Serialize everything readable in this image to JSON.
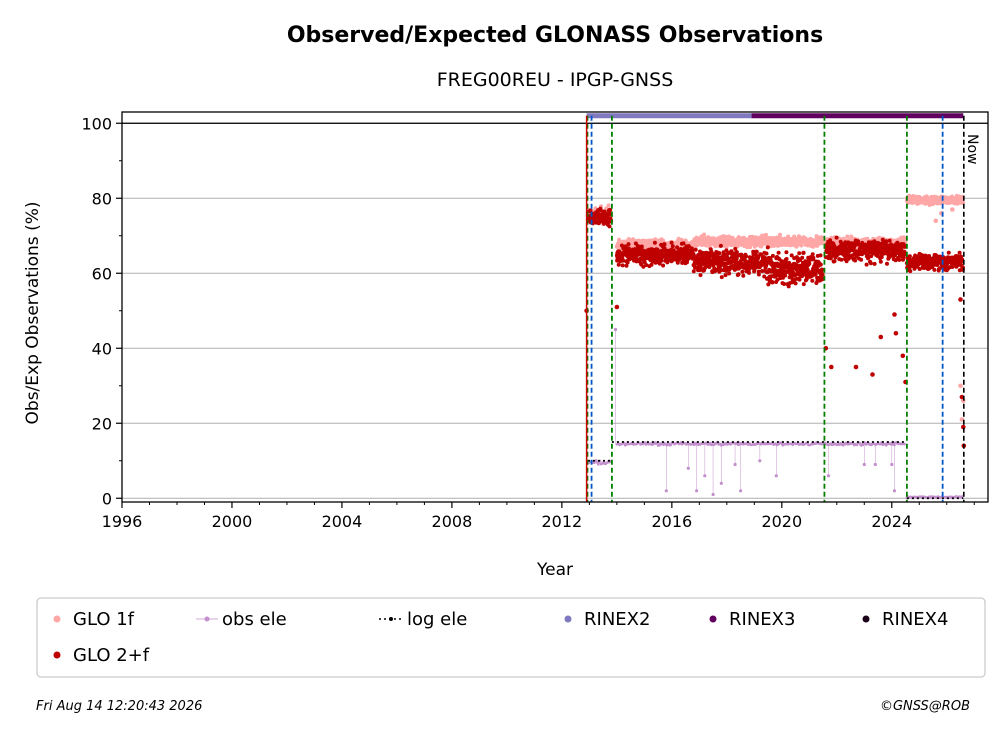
{
  "chart_data": {
    "type": "scatter",
    "title": "Observed/Expected GLONASS Observations",
    "subtitle": "FREG00REU - IPGP-GNSS",
    "xlabel": "Year",
    "ylabel": "Obs/Exp Observations (%)",
    "xlim": [
      1996,
      2027.5
    ],
    "ylim": [
      -1,
      103
    ],
    "xticks": [
      1996,
      2000,
      2004,
      2008,
      2012,
      2016,
      2020,
      2024
    ],
    "yticks": [
      0,
      20,
      40,
      60,
      80,
      100
    ],
    "grid": "horizontal",
    "legend_position": "bottom",
    "now_label": "Now",
    "now_x": 2026.62,
    "green_event_lines": [
      2012.93,
      2013.82,
      2021.55,
      2024.55
    ],
    "blue_event_lines": [
      2013.08,
      2025.85
    ],
    "red_event_lines": [
      2012.9
    ],
    "series": [
      {
        "name": "GLO 1f",
        "color": "#ffa6a6",
        "segments": [
          {
            "x0": 2012.95,
            "x1": 2013.8,
            "y": 75.5,
            "spread": 3
          },
          {
            "x0": 2014.0,
            "x1": 2016.8,
            "y": 67.5,
            "spread": 2
          },
          {
            "x0": 2016.8,
            "x1": 2021.5,
            "y": 68.5,
            "spread": 2
          },
          {
            "x0": 2021.6,
            "x1": 2024.5,
            "y": 68.0,
            "spread": 2
          },
          {
            "x0": 2024.55,
            "x1": 2026.6,
            "y": 79.5,
            "spread": 1.5
          }
        ],
        "outliers": [
          [
            2025.6,
            74
          ],
          [
            2025.8,
            76
          ],
          [
            2026.2,
            77
          ],
          [
            2026.5,
            30
          ],
          [
            2026.55,
            21
          ],
          [
            2026.6,
            26
          ]
        ]
      },
      {
        "name": "GLO 2+f",
        "color": "#bf0000",
        "segments": [
          {
            "x0": 2012.95,
            "x1": 2013.8,
            "y": 75.0,
            "spread": 3
          },
          {
            "x0": 2014.0,
            "x1": 2016.8,
            "y": 65.0,
            "spread": 4
          },
          {
            "x0": 2016.8,
            "x1": 2019.5,
            "y": 63.0,
            "spread": 5
          },
          {
            "x0": 2019.5,
            "x1": 2021.5,
            "y": 61.0,
            "spread": 6
          },
          {
            "x0": 2021.6,
            "x1": 2024.5,
            "y": 66.0,
            "spread": 4
          },
          {
            "x0": 2024.55,
            "x1": 2026.6,
            "y": 63.0,
            "spread": 3
          }
        ],
        "outliers": [
          [
            2012.9,
            50
          ],
          [
            2014.0,
            51
          ],
          [
            2021.6,
            40
          ],
          [
            2021.8,
            35
          ],
          [
            2022.7,
            35
          ],
          [
            2023.3,
            33
          ],
          [
            2023.6,
            43
          ],
          [
            2024.1,
            49
          ],
          [
            2024.15,
            44
          ],
          [
            2024.4,
            38
          ],
          [
            2024.5,
            31
          ],
          [
            2026.5,
            53
          ],
          [
            2026.55,
            27
          ],
          [
            2026.6,
            19
          ],
          [
            2026.62,
            14
          ]
        ]
      },
      {
        "name": "obs ele",
        "color": "#c38fcc",
        "segments": [
          {
            "x0": 2012.95,
            "x1": 2013.8,
            "y": 9.5,
            "spread": 1
          },
          {
            "x0": 2014.0,
            "x1": 2024.5,
            "y": 14.5,
            "spread": 0.5
          },
          {
            "x0": 2024.55,
            "x1": 2026.6,
            "y": 0.3,
            "spread": 0.3
          }
        ],
        "outliers": [
          [
            2015.8,
            2
          ],
          [
            2016.6,
            8
          ],
          [
            2016.9,
            2
          ],
          [
            2017.2,
            6
          ],
          [
            2017.5,
            1
          ],
          [
            2017.8,
            4
          ],
          [
            2018.3,
            9
          ],
          [
            2018.5,
            2
          ],
          [
            2019.2,
            10
          ],
          [
            2019.8,
            6
          ],
          [
            2021.7,
            6
          ],
          [
            2023.0,
            9
          ],
          [
            2023.4,
            9
          ],
          [
            2024.0,
            9
          ],
          [
            2024.1,
            2
          ],
          [
            2013.95,
            45
          ]
        ]
      },
      {
        "name": "log ele",
        "color": "#000000",
        "steps": [
          [
            2012.95,
            2013.8,
            10
          ],
          [
            2013.82,
            2024.55,
            15
          ],
          [
            2024.55,
            2026.6,
            0
          ]
        ]
      },
      {
        "name": "RINEX2",
        "color": "#8079c0",
        "range": [
          2012.9,
          2018.9
        ],
        "y": 102
      },
      {
        "name": "RINEX3",
        "color": "#62005f",
        "range": [
          2018.9,
          2026.6
        ],
        "y": 102
      },
      {
        "name": "RINEX4",
        "color": "#1a0018",
        "range": [],
        "y": 102
      }
    ]
  },
  "footer": {
    "timestamp": "Fri Aug 14 12:20:43 2026",
    "copyright": "©GNSS@ROB"
  }
}
